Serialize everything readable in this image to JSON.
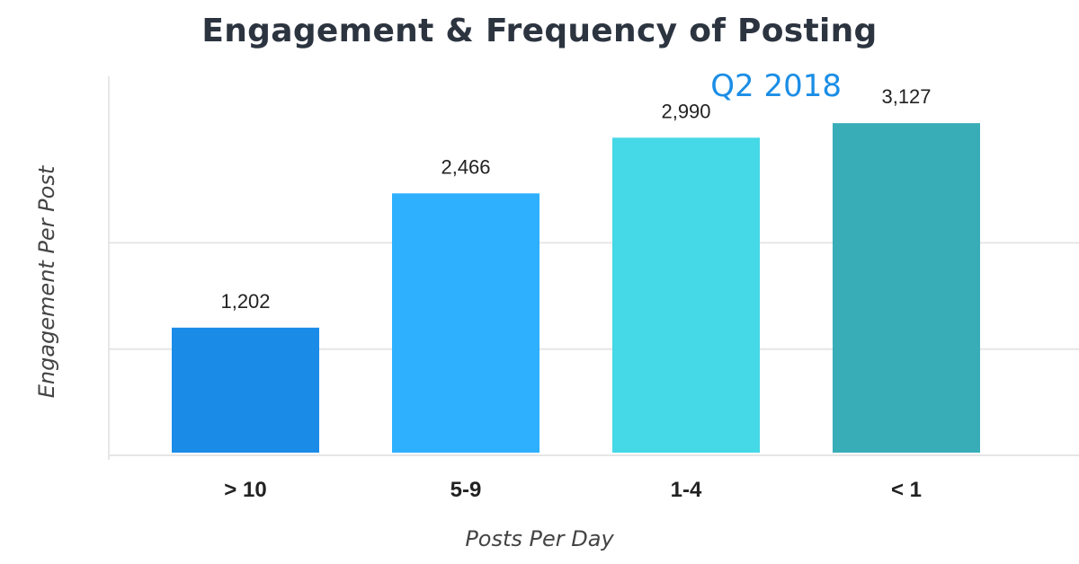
{
  "chart_data": {
    "type": "bar",
    "title": "Engagement & Frequency of Posting",
    "subtitle": "Q2 2018",
    "xlabel": "Posts Per Day",
    "ylabel": "Engagement Per Post",
    "categories": [
      "> 10",
      "5-9",
      "1-4",
      "< 1"
    ],
    "values": [
      1202,
      2466,
      2990,
      3127
    ],
    "value_labels": [
      "1,202",
      "2,466",
      "2,990",
      "3,127"
    ],
    "colors": [
      "#1a8ce8",
      "#2eb0fe",
      "#45d8e6",
      "#38adb8"
    ],
    "ylim": [
      0,
      3500
    ],
    "gridlines": [
      0,
      1000,
      2000
    ],
    "grid": true,
    "legend": "none"
  }
}
